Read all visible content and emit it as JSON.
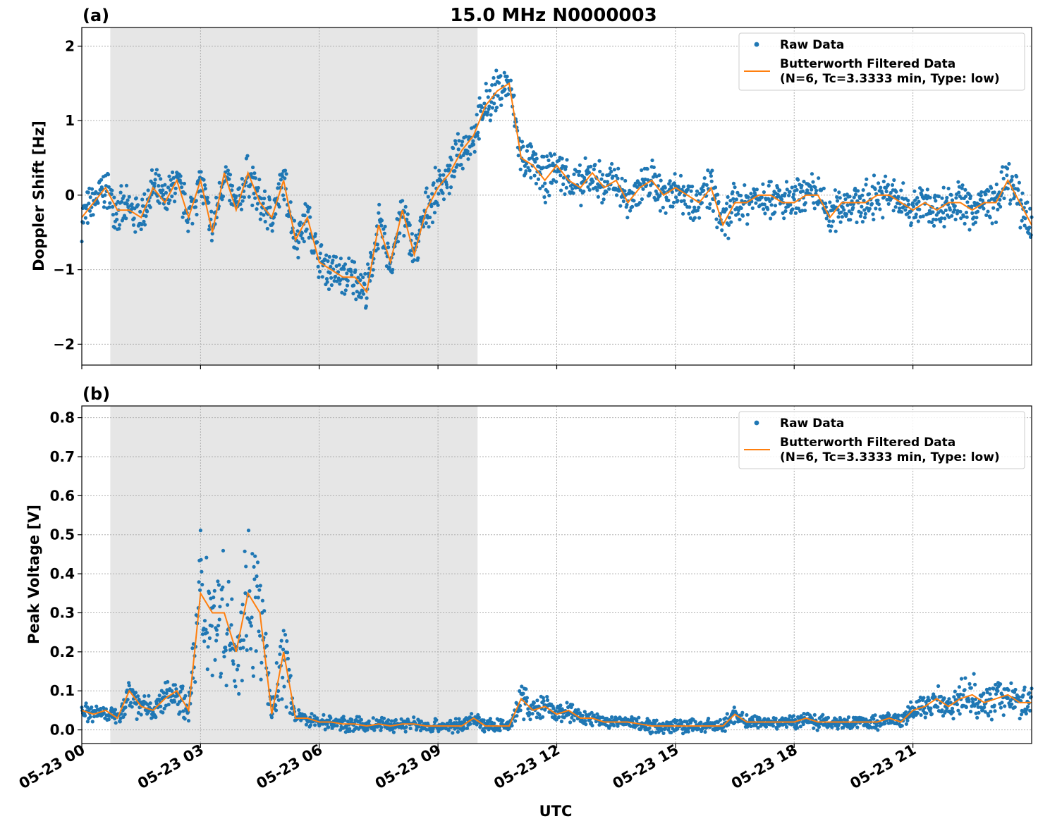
{
  "figure_title": "15.0 MHz N0000003",
  "xlabel": "UTC",
  "x_tick_labels": [
    "05-23 00",
    "05-23 03",
    "05-23 06",
    "05-23 09",
    "05-23 12",
    "05-23 15",
    "05-23 18",
    "05-23 21"
  ],
  "legend": {
    "raw_label": "Raw Data",
    "filtered_label_line1": "Butterworth Filtered Data",
    "filtered_label_line2": "(N=6, Tc=3.3333 min, Type: low)"
  },
  "colors": {
    "raw": "#1f77b4",
    "filtered": "#ff7f0e",
    "shade": "#e6e6e6",
    "grid": "#b0b0b0"
  },
  "chart_data": [
    {
      "type": "line",
      "panel_label": "(a)",
      "ylabel": "Doppler Shift [Hz]",
      "xlim_hours": [
        0,
        24
      ],
      "ylim": [
        -2.28,
        2.25
      ],
      "y_ticks": [
        2,
        1,
        0,
        -1,
        -2
      ],
      "y_tick_labels": [
        "2",
        "1",
        "0",
        "−1",
        "−2"
      ],
      "grid": true,
      "legend_position": "upper right",
      "shaded_region_hours": [
        0.72,
        10.0
      ],
      "series": [
        {
          "name": "Raw Data",
          "style": "points",
          "x_hours": [
            0.0,
            0.3,
            0.6,
            0.9,
            1.2,
            1.5,
            1.8,
            2.1,
            2.4,
            2.7,
            3.0,
            3.3,
            3.6,
            3.9,
            4.2,
            4.5,
            4.8,
            5.1,
            5.4,
            5.7,
            6.0,
            6.3,
            6.6,
            6.9,
            7.2,
            7.5,
            7.8,
            8.1,
            8.4,
            8.7,
            9.0,
            9.3,
            9.6,
            9.9,
            10.2,
            10.5,
            10.8,
            11.1,
            11.4,
            11.7,
            12.0,
            12.3,
            12.6,
            12.9,
            13.2,
            13.5,
            13.8,
            14.1,
            14.4,
            14.7,
            15.0,
            15.3,
            15.6,
            15.9,
            16.2,
            16.5,
            16.8,
            17.1,
            17.4,
            17.7,
            18.0,
            18.3,
            18.6,
            18.9,
            19.2,
            19.5,
            19.8,
            20.1,
            20.4,
            20.7,
            21.0,
            21.3,
            21.6,
            21.9,
            22.2,
            22.5,
            22.8,
            23.1,
            23.4,
            23.7,
            24.0
          ],
          "y": [
            -0.3,
            -0.1,
            0.1,
            -0.2,
            -0.2,
            -0.3,
            0.1,
            -0.1,
            0.2,
            -0.3,
            0.2,
            -0.5,
            0.3,
            -0.2,
            0.3,
            -0.1,
            -0.3,
            0.2,
            -0.6,
            -0.3,
            -0.9,
            -1.0,
            -1.1,
            -1.1,
            -1.3,
            -0.4,
            -0.9,
            -0.2,
            -0.8,
            -0.2,
            0.1,
            0.3,
            0.6,
            0.8,
            1.2,
            1.4,
            1.5,
            0.5,
            0.4,
            0.2,
            0.4,
            0.2,
            0.1,
            0.3,
            0.1,
            0.2,
            -0.1,
            0.1,
            0.2,
            0.0,
            0.1,
            0.0,
            -0.1,
            0.1,
            -0.4,
            -0.1,
            -0.1,
            0.0,
            0.0,
            -0.1,
            -0.1,
            0.0,
            0.0,
            -0.3,
            -0.1,
            -0.1,
            -0.1,
            0.0,
            0.0,
            -0.1,
            -0.2,
            -0.1,
            -0.2,
            -0.1,
            -0.1,
            -0.2,
            -0.1,
            -0.1,
            0.2,
            -0.1,
            -0.4
          ]
        },
        {
          "name": "Butterworth Filtered Data\n(N=6, Tc=3.3333 min, Type: low)",
          "style": "line",
          "x_hours": [
            0.0,
            0.3,
            0.6,
            0.9,
            1.2,
            1.5,
            1.8,
            2.1,
            2.4,
            2.7,
            3.0,
            3.3,
            3.6,
            3.9,
            4.2,
            4.5,
            4.8,
            5.1,
            5.4,
            5.7,
            6.0,
            6.3,
            6.6,
            6.9,
            7.2,
            7.5,
            7.8,
            8.1,
            8.4,
            8.7,
            9.0,
            9.3,
            9.6,
            9.9,
            10.2,
            10.5,
            10.8,
            11.1,
            11.4,
            11.7,
            12.0,
            12.3,
            12.6,
            12.9,
            13.2,
            13.5,
            13.8,
            14.1,
            14.4,
            14.7,
            15.0,
            15.3,
            15.6,
            15.9,
            16.2,
            16.5,
            16.8,
            17.1,
            17.4,
            17.7,
            18.0,
            18.3,
            18.6,
            18.9,
            19.2,
            19.5,
            19.8,
            20.1,
            20.4,
            20.7,
            21.0,
            21.3,
            21.6,
            21.9,
            22.2,
            22.5,
            22.8,
            23.1,
            23.4,
            23.7,
            24.0
          ],
          "y": [
            -0.3,
            -0.1,
            0.1,
            -0.2,
            -0.2,
            -0.3,
            0.1,
            -0.1,
            0.2,
            -0.3,
            0.2,
            -0.5,
            0.3,
            -0.2,
            0.3,
            -0.1,
            -0.3,
            0.2,
            -0.6,
            -0.3,
            -0.9,
            -1.0,
            -1.1,
            -1.1,
            -1.3,
            -0.4,
            -0.9,
            -0.2,
            -0.8,
            -0.2,
            0.1,
            0.3,
            0.6,
            0.8,
            1.2,
            1.4,
            1.5,
            0.5,
            0.4,
            0.2,
            0.4,
            0.2,
            0.1,
            0.3,
            0.1,
            0.2,
            -0.1,
            0.1,
            0.2,
            0.0,
            0.1,
            0.0,
            -0.1,
            0.1,
            -0.4,
            -0.1,
            -0.1,
            0.0,
            0.0,
            -0.1,
            -0.1,
            0.0,
            0.0,
            -0.3,
            -0.1,
            -0.1,
            -0.1,
            0.0,
            0.0,
            -0.1,
            -0.2,
            -0.1,
            -0.2,
            -0.1,
            -0.1,
            -0.2,
            -0.1,
            -0.1,
            0.2,
            -0.1,
            -0.4
          ]
        }
      ]
    },
    {
      "type": "line",
      "panel_label": "(b)",
      "ylabel": "Peak Voltage [V]",
      "xlim_hours": [
        0,
        24
      ],
      "ylim": [
        -0.035,
        0.83
      ],
      "y_ticks": [
        0.0,
        0.1,
        0.2,
        0.3,
        0.4,
        0.5,
        0.6,
        0.7,
        0.8
      ],
      "y_tick_labels": [
        "0.0",
        "0.1",
        "0.2",
        "0.3",
        "0.4",
        "0.5",
        "0.6",
        "0.7",
        "0.8"
      ],
      "grid": true,
      "legend_position": "upper right",
      "shaded_region_hours": [
        0.72,
        10.0
      ],
      "series": [
        {
          "name": "Raw Data",
          "style": "points",
          "x_hours": [
            0.0,
            0.3,
            0.6,
            0.9,
            1.2,
            1.5,
            1.8,
            2.1,
            2.4,
            2.7,
            3.0,
            3.3,
            3.6,
            3.9,
            4.2,
            4.5,
            4.8,
            5.1,
            5.4,
            5.7,
            6.0,
            6.3,
            6.6,
            6.9,
            7.2,
            7.5,
            7.8,
            8.1,
            8.4,
            8.7,
            9.0,
            9.3,
            9.6,
            9.9,
            10.2,
            10.5,
            10.8,
            11.1,
            11.4,
            11.7,
            12.0,
            12.3,
            12.6,
            12.9,
            13.2,
            13.5,
            13.8,
            14.1,
            14.4,
            14.7,
            15.0,
            15.3,
            15.6,
            15.9,
            16.2,
            16.5,
            16.8,
            17.1,
            17.4,
            17.7,
            18.0,
            18.3,
            18.6,
            18.9,
            19.2,
            19.5,
            19.8,
            20.1,
            20.4,
            20.7,
            21.0,
            21.3,
            21.6,
            21.9,
            22.2,
            22.5,
            22.8,
            23.1,
            23.4,
            23.7,
            24.0
          ],
          "y": [
            0.05,
            0.04,
            0.05,
            0.03,
            0.1,
            0.06,
            0.05,
            0.08,
            0.1,
            0.05,
            0.35,
            0.3,
            0.3,
            0.2,
            0.35,
            0.3,
            0.04,
            0.2,
            0.03,
            0.03,
            0.02,
            0.02,
            0.015,
            0.015,
            0.01,
            0.015,
            0.01,
            0.015,
            0.015,
            0.01,
            0.01,
            0.01,
            0.01,
            0.03,
            0.01,
            0.01,
            0.01,
            0.08,
            0.05,
            0.06,
            0.04,
            0.05,
            0.03,
            0.03,
            0.02,
            0.02,
            0.02,
            0.015,
            0.01,
            0.01,
            0.01,
            0.01,
            0.01,
            0.01,
            0.01,
            0.04,
            0.02,
            0.02,
            0.02,
            0.02,
            0.02,
            0.03,
            0.02,
            0.02,
            0.02,
            0.02,
            0.02,
            0.02,
            0.03,
            0.02,
            0.05,
            0.06,
            0.08,
            0.06,
            0.08,
            0.09,
            0.07,
            0.08,
            0.09,
            0.07,
            0.07
          ]
        },
        {
          "name": "Butterworth Filtered Data\n(N=6, Tc=3.3333 min, Type: low)",
          "style": "line",
          "x_hours": [
            0.0,
            0.3,
            0.6,
            0.9,
            1.2,
            1.5,
            1.8,
            2.1,
            2.4,
            2.7,
            3.0,
            3.3,
            3.6,
            3.9,
            4.2,
            4.5,
            4.8,
            5.1,
            5.4,
            5.7,
            6.0,
            6.3,
            6.6,
            6.9,
            7.2,
            7.5,
            7.8,
            8.1,
            8.4,
            8.7,
            9.0,
            9.3,
            9.6,
            9.9,
            10.2,
            10.5,
            10.8,
            11.1,
            11.4,
            11.7,
            12.0,
            12.3,
            12.6,
            12.9,
            13.2,
            13.5,
            13.8,
            14.1,
            14.4,
            14.7,
            15.0,
            15.3,
            15.6,
            15.9,
            16.2,
            16.5,
            16.8,
            17.1,
            17.4,
            17.7,
            18.0,
            18.3,
            18.6,
            18.9,
            19.2,
            19.5,
            19.8,
            20.1,
            20.4,
            20.7,
            21.0,
            21.3,
            21.6,
            21.9,
            22.2,
            22.5,
            22.8,
            23.1,
            23.4,
            23.7,
            24.0
          ],
          "y": [
            0.05,
            0.04,
            0.05,
            0.03,
            0.1,
            0.06,
            0.05,
            0.08,
            0.1,
            0.05,
            0.35,
            0.3,
            0.3,
            0.2,
            0.35,
            0.3,
            0.04,
            0.2,
            0.03,
            0.03,
            0.02,
            0.02,
            0.015,
            0.015,
            0.01,
            0.015,
            0.01,
            0.015,
            0.015,
            0.01,
            0.01,
            0.01,
            0.01,
            0.03,
            0.01,
            0.01,
            0.01,
            0.08,
            0.05,
            0.06,
            0.04,
            0.05,
            0.03,
            0.03,
            0.02,
            0.02,
            0.02,
            0.015,
            0.01,
            0.01,
            0.01,
            0.01,
            0.01,
            0.01,
            0.01,
            0.04,
            0.02,
            0.02,
            0.02,
            0.02,
            0.02,
            0.03,
            0.02,
            0.02,
            0.02,
            0.02,
            0.02,
            0.02,
            0.03,
            0.02,
            0.05,
            0.06,
            0.08,
            0.06,
            0.08,
            0.09,
            0.07,
            0.08,
            0.09,
            0.07,
            0.07
          ]
        }
      ]
    }
  ]
}
